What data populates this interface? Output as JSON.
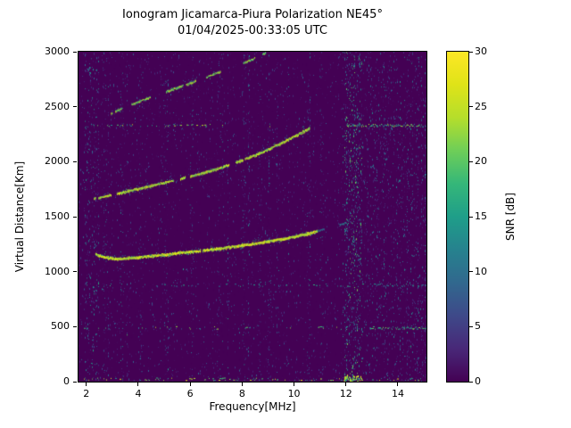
{
  "chart_data": {
    "type": "heatmap",
    "title_line1": "Ionogram Jicamarca-Piura Polarization NE45°",
    "title_line2": "01/04/2025-00:33:05 UTC",
    "xlabel": "Frequency[MHz]",
    "ylabel": "Virtual Distance[Km]",
    "xlim": [
      1.7,
      15.1
    ],
    "ylim": [
      0,
      3000
    ],
    "x_ticks": [
      2,
      4,
      6,
      8,
      10,
      12,
      14
    ],
    "y_ticks": [
      0,
      500,
      1000,
      1500,
      2000,
      2500,
      3000
    ],
    "grid": false,
    "colorbar": {
      "label": "SNR [dB]",
      "min": 0,
      "max": 30,
      "ticks": [
        0,
        5,
        10,
        15,
        20,
        25,
        30
      ]
    },
    "colormap": {
      "name": "viridis",
      "stops": [
        [
          0.0,
          "#440154"
        ],
        [
          0.1,
          "#482878"
        ],
        [
          0.2,
          "#3e4989"
        ],
        [
          0.3,
          "#31688e"
        ],
        [
          0.4,
          "#26828e"
        ],
        [
          0.5,
          "#1f9e89"
        ],
        [
          0.6,
          "#35b779"
        ],
        [
          0.7,
          "#6ece58"
        ],
        [
          0.8,
          "#b5de2b"
        ],
        [
          0.9,
          "#dfe318"
        ],
        [
          1.0,
          "#fde725"
        ]
      ]
    },
    "background_snr_db": 0,
    "traces": [
      {
        "name": "echo-trace-low",
        "points": [
          [
            2.35,
            1165
          ],
          [
            2.7,
            1135
          ],
          [
            3.2,
            1120
          ],
          [
            4.0,
            1135
          ],
          [
            5.0,
            1160
          ],
          [
            6.0,
            1185
          ],
          [
            7.0,
            1212
          ],
          [
            8.0,
            1242
          ],
          [
            9.0,
            1280
          ],
          [
            9.8,
            1312
          ],
          [
            10.5,
            1348
          ],
          [
            10.9,
            1372
          ]
        ],
        "core_snr": 29,
        "fringe_snr": 16,
        "thickness_km": 34,
        "density": 3.2,
        "gap": 0.08
      },
      {
        "name": "echo-trace-low-extension",
        "points": [
          [
            10.9,
            1380
          ],
          [
            11.5,
            1415
          ],
          [
            12.0,
            1450
          ]
        ],
        "core_snr": 16,
        "fringe_snr": 10,
        "thickness_km": 20,
        "density": 1.0,
        "gap": 0.5
      },
      {
        "name": "echo-trace-mid",
        "points": [
          [
            2.3,
            1668
          ],
          [
            2.9,
            1700
          ],
          [
            3.6,
            1738
          ],
          [
            4.3,
            1775
          ],
          [
            5.0,
            1815
          ],
          [
            5.8,
            1858
          ],
          [
            6.5,
            1902
          ],
          [
            7.2,
            1952
          ],
          [
            7.9,
            2010
          ],
          [
            8.5,
            2065
          ],
          [
            9.1,
            2128
          ],
          [
            9.7,
            2198
          ],
          [
            10.3,
            2272
          ],
          [
            10.6,
            2312
          ]
        ],
        "core_snr": 28,
        "fringe_snr": 15,
        "thickness_km": 30,
        "density": 2.4,
        "gap": 0.22
      },
      {
        "name": "echo-trace-top",
        "points": [
          [
            2.95,
            2445
          ],
          [
            3.5,
            2502
          ],
          [
            4.1,
            2558
          ],
          [
            4.8,
            2620
          ],
          [
            5.5,
            2678
          ],
          [
            6.2,
            2738
          ],
          [
            6.9,
            2800
          ],
          [
            7.6,
            2862
          ],
          [
            8.3,
            2928
          ],
          [
            8.9,
            2995
          ]
        ],
        "core_snr": 26,
        "fringe_snr": 14,
        "thickness_km": 26,
        "density": 1.8,
        "gap": 0.38
      }
    ],
    "interference_lines": [
      {
        "km": 2332,
        "vmax": 26,
        "segs": [
          [
            1.9,
            7.3,
            0.45
          ],
          [
            8.2,
            10.6,
            0.12
          ],
          [
            12.0,
            15.1,
            1.6
          ]
        ]
      },
      {
        "km": 880,
        "vmax": 18,
        "segs": [
          [
            1.9,
            12.6,
            0.3
          ],
          [
            12.6,
            15.1,
            0.7
          ]
        ]
      },
      {
        "km": 492,
        "vmax": 24,
        "segs": [
          [
            1.9,
            11.9,
            0.25
          ],
          [
            12.9,
            15.1,
            1.3
          ]
        ]
      },
      {
        "km": 25,
        "vmax": 28,
        "segs": [
          [
            1.9,
            15.1,
            0.5
          ],
          [
            11.95,
            12.6,
            2.5
          ]
        ]
      }
    ],
    "noise_bands": [
      {
        "f0": 11.95,
        "f1": 12.6,
        "density": 3.0,
        "vmax": 22,
        "bright_bottom": true
      },
      {
        "f0": 12.6,
        "f1": 15.1,
        "density": 1.1,
        "vmax": 14
      },
      {
        "f0": 1.95,
        "f1": 2.4,
        "density": 1.6,
        "vmax": 16
      }
    ],
    "noise": {
      "seed": 12345,
      "base_density": 12,
      "column_stripe_prob": 0.07,
      "stripe_freqs": [
        2.7,
        3.35,
        4.1,
        5.05,
        6.05,
        7.1,
        8.05,
        8.65,
        9.05,
        10.55,
        11.05
      ]
    }
  }
}
